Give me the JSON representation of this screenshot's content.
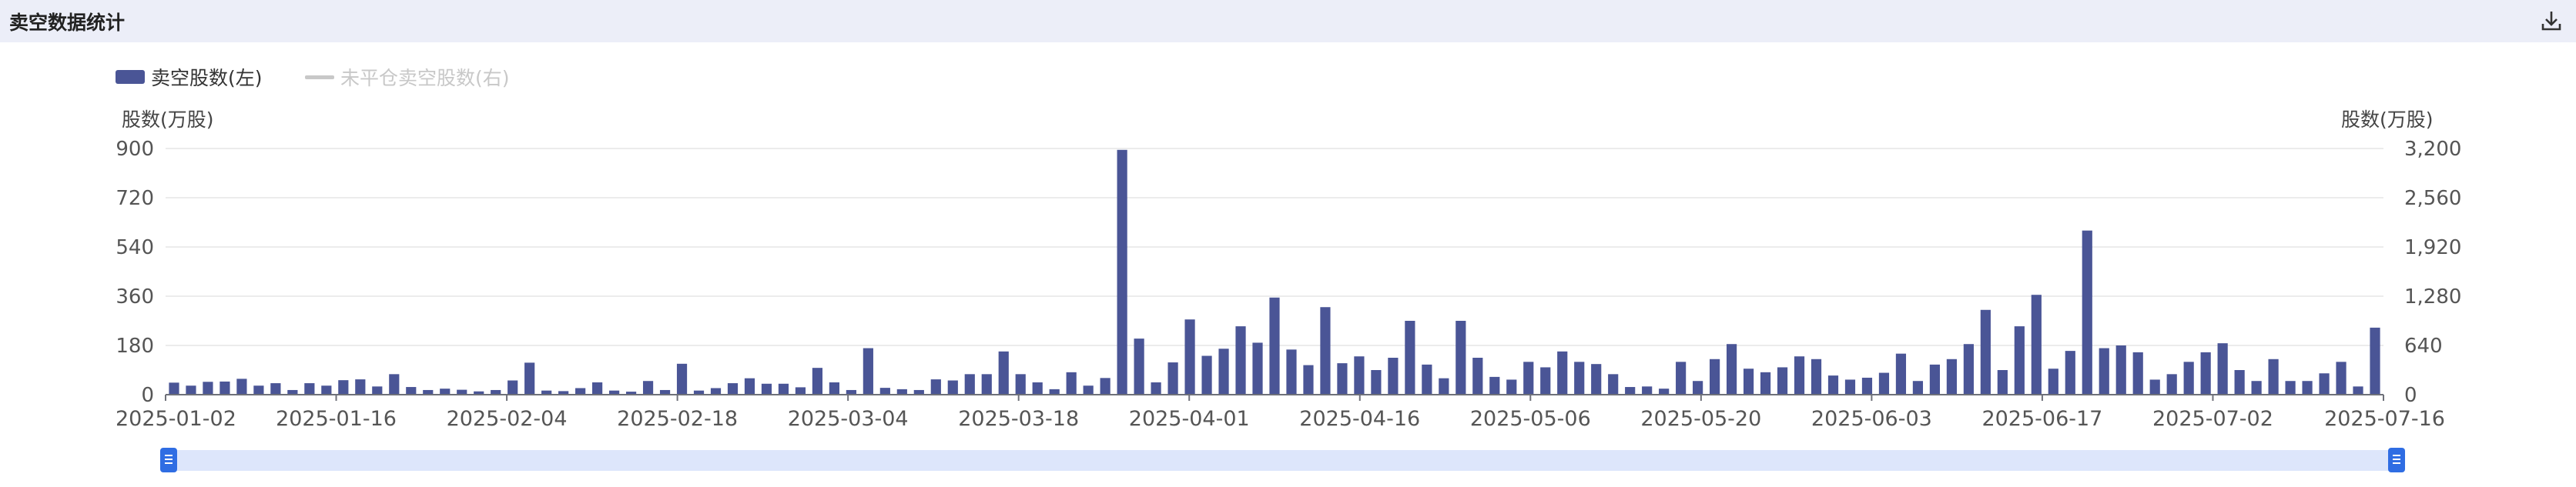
{
  "header": {
    "title": "卖空数据统计",
    "download_icon": "download-icon"
  },
  "chart_data": {
    "type": "bar",
    "legend": [
      {
        "name": "卖空股数(左)",
        "color": "#4a5596",
        "active": true
      },
      {
        "name": "未平仓卖空股数(右)",
        "color": "#c8c8c8",
        "active": false
      }
    ],
    "y_left_label": "股数(万股)",
    "y_right_label": "股数(万股)",
    "y_left_ticks": [
      "0",
      "180",
      "360",
      "540",
      "720",
      "900"
    ],
    "y_right_ticks": [
      "0",
      "640",
      "1,280",
      "1,920",
      "2,560",
      "3,200"
    ],
    "ylim_left": [
      0,
      900
    ],
    "ylim_right": [
      0,
      3200
    ],
    "grid": true,
    "x_tick_labels": [
      "2025-01-02",
      "2025-01-16",
      "2025-02-04",
      "2025-02-18",
      "2025-03-04",
      "2025-03-18",
      "2025-04-01",
      "2025-04-16",
      "2025-05-06",
      "2025-05-20",
      "2025-06-03",
      "2025-06-17",
      "2025-07-02",
      "2025-07-16"
    ],
    "series": [
      {
        "name": "卖空股数(左)",
        "values": [
          44,
          33,
          47,
          48,
          58,
          33,
          42,
          17,
          42,
          33,
          53,
          56,
          30,
          75,
          28,
          17,
          22,
          18,
          12,
          17,
          52,
          117,
          15,
          13,
          24,
          45,
          15,
          11,
          50,
          17,
          113,
          15,
          24,
          42,
          60,
          40,
          40,
          27,
          98,
          45,
          17,
          170,
          25,
          20,
          17,
          56,
          52,
          75,
          75,
          158,
          75,
          45,
          20,
          82,
          33,
          61,
          895,
          205,
          45,
          118,
          275,
          142,
          168,
          250,
          190,
          355,
          165,
          108,
          320,
          115,
          140,
          90,
          135,
          270,
          110,
          60,
          270,
          135,
          65,
          55,
          120,
          100,
          158,
          120,
          112,
          75,
          28,
          30,
          22,
          120,
          50,
          130,
          185,
          95,
          82,
          100,
          140,
          130,
          70,
          55,
          62,
          80,
          150,
          50,
          110,
          130,
          185,
          310,
          90,
          250,
          365,
          95,
          160,
          600,
          170,
          180,
          155,
          55,
          75,
          120,
          155,
          188,
          90,
          50,
          130,
          50,
          50,
          78,
          120,
          30,
          245
        ]
      }
    ]
  }
}
